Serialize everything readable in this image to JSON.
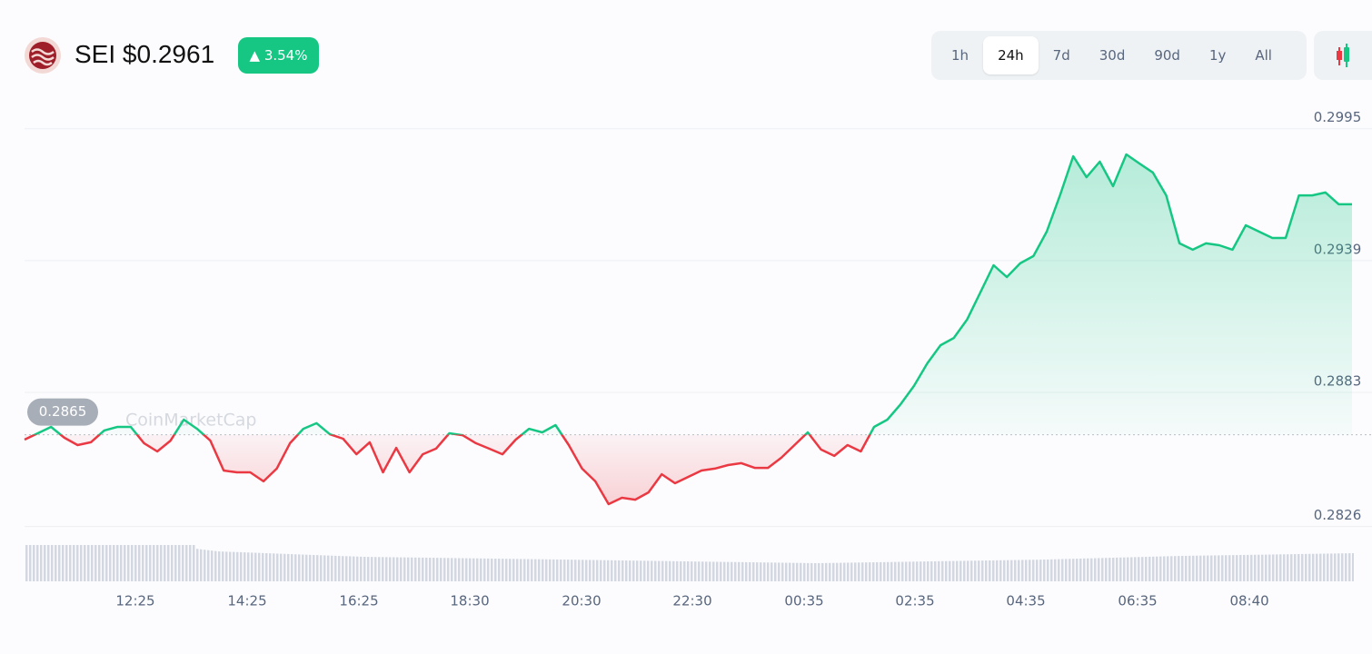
{
  "header": {
    "symbol": "SEI",
    "price": "$0.2961",
    "change": "3.54%",
    "ranges": [
      "1h",
      "24h",
      "7d",
      "30d",
      "90d",
      "1y",
      "All"
    ],
    "active_range": "24h"
  },
  "chart_data": {
    "type": "line",
    "watermark": "CoinMarketCap",
    "values": [
      0.28629,
      0.28656,
      0.28683,
      0.28637,
      0.28606,
      0.28618,
      0.28668,
      0.28683,
      0.28683,
      0.28614,
      0.28579,
      0.28625,
      0.28714,
      0.28675,
      0.28625,
      0.28498,
      0.2849,
      0.2849,
      0.28452,
      0.28506,
      0.28614,
      0.28675,
      0.28699,
      0.28652,
      0.28633,
      0.28567,
      0.28618,
      0.2849,
      0.28594,
      0.2849,
      0.28567,
      0.28591,
      0.28656,
      0.28648,
      0.28614,
      0.28591,
      0.28567,
      0.28629,
      0.28675,
      0.2866,
      0.28691,
      0.28606,
      0.28506,
      0.28452,
      0.28355,
      0.28382,
      0.28374,
      0.28405,
      0.28482,
      0.28444,
      0.28471,
      0.28498,
      0.28506,
      0.28521,
      0.28529,
      0.28509,
      0.28509,
      0.28552,
      0.28606,
      0.2866,
      0.28587,
      0.2856,
      0.28606,
      0.28579,
      0.28683,
      0.28714,
      0.2878,
      0.28857,
      0.28953,
      0.2903,
      0.29061,
      0.29139,
      0.29254,
      0.2937,
      0.2932,
      0.29378,
      0.29409,
      0.29513,
      0.29667,
      0.29833,
      0.29744,
      0.2981,
      0.29706,
      0.29841,
      0.29802,
      0.29764,
      0.29667,
      0.29463,
      0.29436,
      0.29463,
      0.29455,
      0.29436,
      0.2954,
      0.29513,
      0.29486,
      0.29486,
      0.29667,
      0.29667,
      0.29679,
      0.29629,
      0.29629
    ],
    "reference": 0.2865,
    "up_color": "#16c784",
    "down_color": "#ea3943",
    "xlim": [
      0,
      100
    ],
    "xticks": [
      {
        "value": 8.35,
        "label": "12:25"
      },
      {
        "value": 16.77,
        "label": "14:25"
      },
      {
        "value": 25.19,
        "label": "16:25"
      },
      {
        "value": 33.54,
        "label": "18:30"
      },
      {
        "value": 41.96,
        "label": "20:30"
      },
      {
        "value": 50.31,
        "label": "22:30"
      },
      {
        "value": 58.73,
        "label": "00:35"
      },
      {
        "value": 67.08,
        "label": "02:35"
      },
      {
        "value": 75.43,
        "label": "04:35"
      },
      {
        "value": 83.85,
        "label": "06:35"
      },
      {
        "value": 92.27,
        "label": "08:40"
      }
    ],
    "ylim": [
      0.2822,
      0.3003
    ],
    "yticks": [
      0.2826,
      0.2883,
      0.2939,
      0.2995
    ],
    "grid": true
  }
}
